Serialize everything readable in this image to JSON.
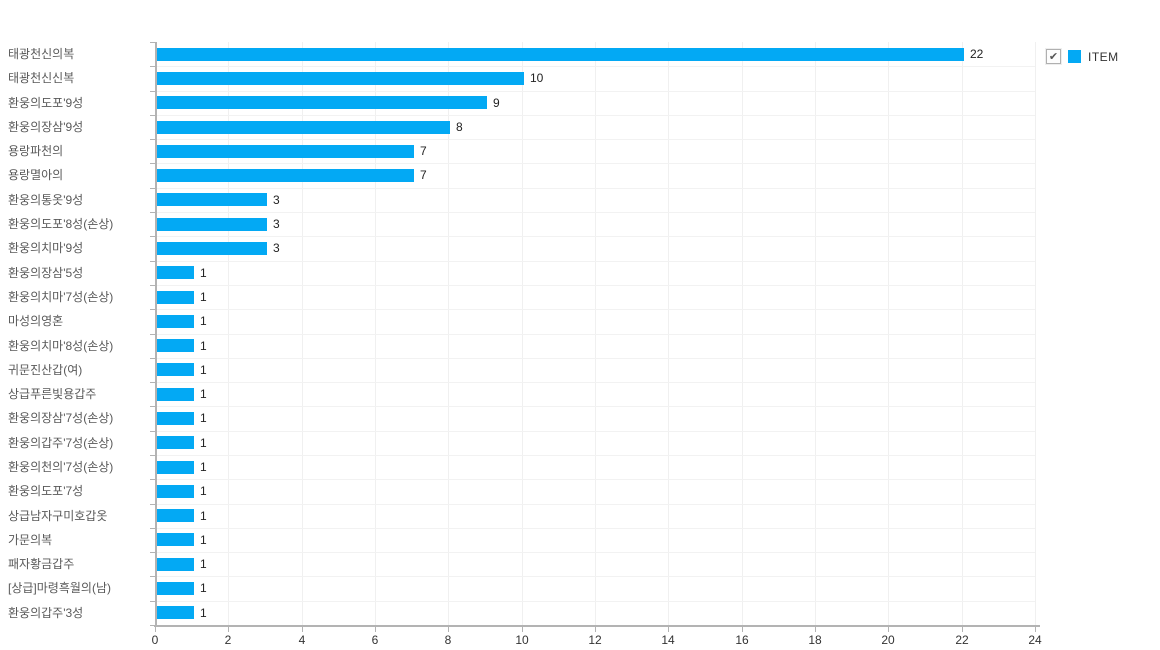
{
  "legend": {
    "label": "ITEM",
    "checked": true,
    "check_glyph": "✔"
  },
  "colors": {
    "bar": "#03A9F4",
    "axis": "#b3b3b3",
    "grid_vertical": "#f0f0f0",
    "grid_horizontal": "#f2f2f2",
    "category_label": "#595959",
    "value_label": "#222222",
    "tick_label": "#333333"
  },
  "chart_data": {
    "type": "bar",
    "orientation": "horizontal",
    "title": "",
    "xlabel": "",
    "ylabel": "",
    "legend_position": "top-right",
    "grid": true,
    "xlim": [
      0,
      24
    ],
    "xtick_step": 2,
    "xtick_labels": [
      "0",
      "2",
      "4",
      "6",
      "8",
      "10",
      "12",
      "14",
      "16",
      "18",
      "20",
      "22",
      "24"
    ],
    "categories": [
      "태광천신의복",
      "태광천신신복",
      "환웅의도포'9성",
      "환웅의장삼'9성",
      "용랑파천의",
      "용랑멸아의",
      "환웅의통옷'9성",
      "환웅의도포'8성(손상)",
      "환웅의치마'9성",
      "환웅의장삼'5성",
      "환웅의치마'7성(손상)",
      "마성의영혼",
      "환웅의치마'8성(손상)",
      "귀문진산갑(여)",
      "상급푸른빛용갑주",
      "환웅의장삼'7성(손상)",
      "환웅의갑주'7성(손상)",
      "환웅의천의'7성(손상)",
      "환웅의도포'7성",
      "상급남자구미호갑옷",
      "가문의복",
      "패자황금갑주",
      "[상급]마령흑월의(남)",
      "환웅의갑주'3성"
    ],
    "series": [
      {
        "name": "ITEM",
        "values": [
          22,
          10,
          9,
          8,
          7,
          7,
          3,
          3,
          3,
          1,
          1,
          1,
          1,
          1,
          1,
          1,
          1,
          1,
          1,
          1,
          1,
          1,
          1,
          1
        ]
      }
    ]
  }
}
